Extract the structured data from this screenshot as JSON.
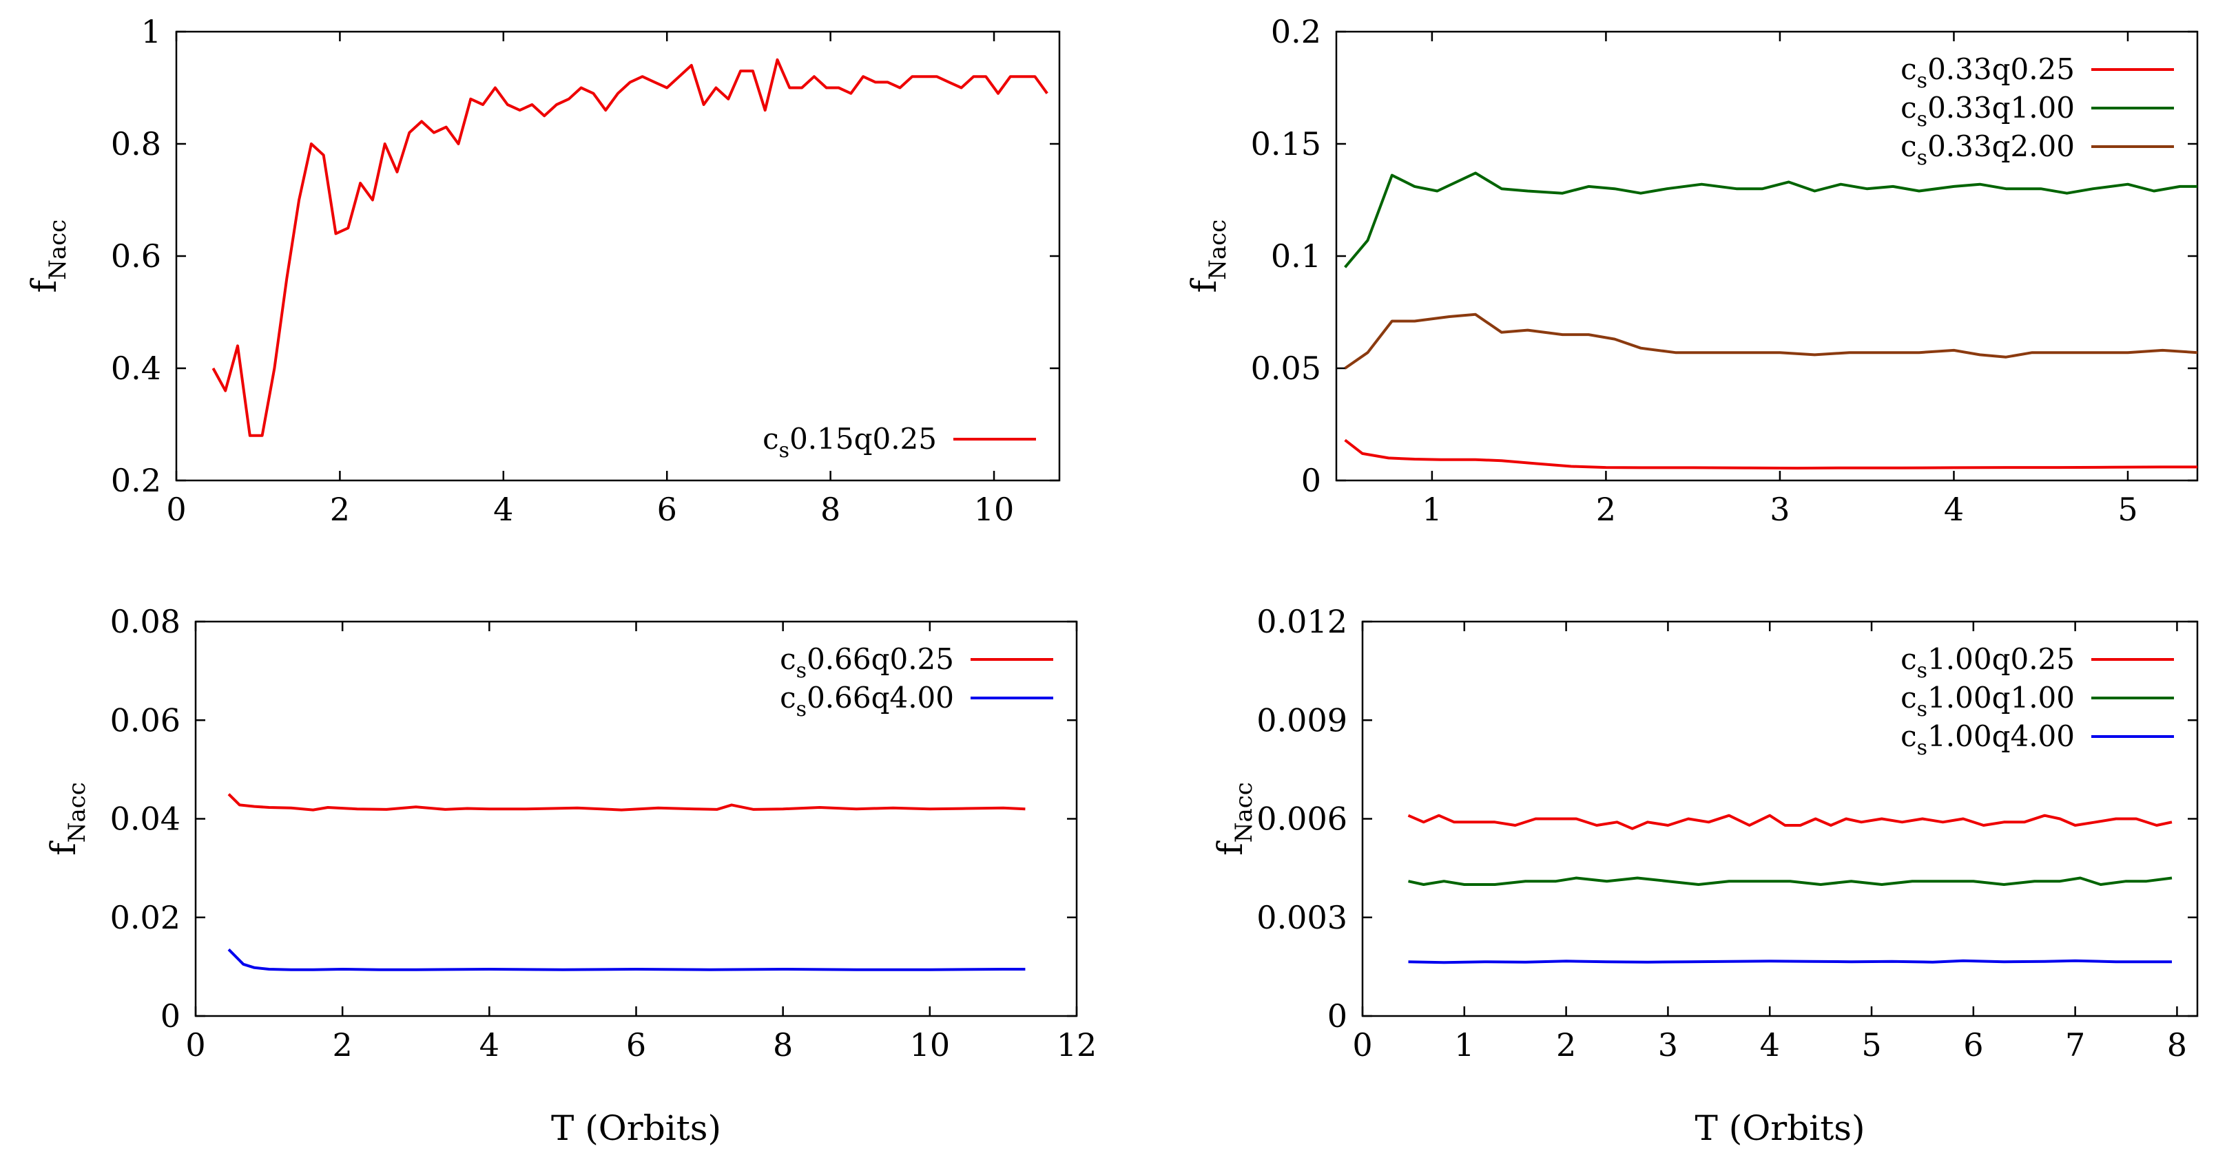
{
  "colors": {
    "red": "#ee0000",
    "green": "#006400",
    "brown": "#8b3a0f",
    "blue": "#0000ee",
    "axis": "#000000"
  },
  "chart_data": [
    {
      "type": "line",
      "panel": "top-left",
      "xlabel": "",
      "ylabel": "f",
      "ylabel_sub": "Nacc",
      "xlim": [
        0,
        10.8
      ],
      "ylim": [
        0.2,
        1.0
      ],
      "xticks": [
        "0",
        "2",
        "4",
        "6",
        "8",
        "10"
      ],
      "xtick_values": [
        0,
        2,
        4,
        6,
        8,
        10
      ],
      "yticks": [
        "0.2",
        "0.4",
        "0.6",
        "0.8",
        "1"
      ],
      "ytick_values": [
        0.2,
        0.4,
        0.6,
        0.8,
        1.0
      ],
      "legend_position": "bottom-right",
      "series": [
        {
          "name_main": "c",
          "name_sub": "s",
          "name_rest": "0.15q0.25",
          "color_key": "red",
          "x": [
            0.45,
            0.6,
            0.75,
            0.9,
            1.05,
            1.2,
            1.35,
            1.5,
            1.65,
            1.8,
            1.95,
            2.1,
            2.25,
            2.4,
            2.55,
            2.7,
            2.85,
            3.0,
            3.15,
            3.3,
            3.45,
            3.6,
            3.75,
            3.9,
            4.05,
            4.2,
            4.35,
            4.5,
            4.65,
            4.8,
            4.95,
            5.1,
            5.25,
            5.4,
            5.55,
            5.7,
            5.85,
            6.0,
            6.15,
            6.3,
            6.45,
            6.6,
            6.75,
            6.9,
            7.05,
            7.2,
            7.35,
            7.5,
            7.65,
            7.8,
            7.95,
            8.1,
            8.25,
            8.4,
            8.55,
            8.7,
            8.85,
            9.0,
            9.15,
            9.3,
            9.45,
            9.6,
            9.75,
            9.9,
            10.05,
            10.2,
            10.35,
            10.5,
            10.65
          ],
          "y": [
            0.4,
            0.36,
            0.44,
            0.28,
            0.28,
            0.4,
            0.56,
            0.7,
            0.8,
            0.78,
            0.64,
            0.65,
            0.73,
            0.7,
            0.8,
            0.75,
            0.82,
            0.84,
            0.82,
            0.83,
            0.8,
            0.88,
            0.87,
            0.9,
            0.87,
            0.86,
            0.87,
            0.85,
            0.87,
            0.88,
            0.9,
            0.89,
            0.86,
            0.89,
            0.91,
            0.92,
            0.91,
            0.9,
            0.92,
            0.94,
            0.87,
            0.9,
            0.88,
            0.93,
            0.93,
            0.86,
            0.95,
            0.9,
            0.9,
            0.92,
            0.9,
            0.9,
            0.89,
            0.92,
            0.91,
            0.91,
            0.9,
            0.92,
            0.92,
            0.92,
            0.91,
            0.9,
            0.92,
            0.92,
            0.89,
            0.92,
            0.92,
            0.92,
            0.89
          ]
        }
      ]
    },
    {
      "type": "line",
      "panel": "top-right",
      "xlabel": "",
      "ylabel": "f",
      "ylabel_sub": "Nacc",
      "xlim": [
        0.45,
        5.4
      ],
      "ylim": [
        0,
        0.2
      ],
      "xticks": [
        "1",
        "2",
        "3",
        "4",
        "5"
      ],
      "xtick_values": [
        1,
        2,
        3,
        4,
        5
      ],
      "yticks": [
        "0",
        "0.05",
        "0.1",
        "0.15",
        "0.2"
      ],
      "ytick_values": [
        0,
        0.05,
        0.1,
        0.15,
        0.2
      ],
      "legend_position": "top-right",
      "series": [
        {
          "name_main": "c",
          "name_sub": "s",
          "name_rest": "0.33q0.25",
          "color_key": "red",
          "x": [
            0.5,
            0.6,
            0.75,
            0.9,
            1.05,
            1.25,
            1.4,
            1.6,
            1.8,
            2.0,
            2.2,
            2.5,
            2.8,
            3.1,
            3.4,
            3.7,
            4.0,
            4.3,
            4.6,
            4.9,
            5.2,
            5.4
          ],
          "y": [
            0.018,
            0.012,
            0.01,
            0.0095,
            0.0093,
            0.0093,
            0.0088,
            0.0075,
            0.0063,
            0.0058,
            0.0057,
            0.0057,
            0.0056,
            0.0055,
            0.0056,
            0.0056,
            0.0057,
            0.0058,
            0.0058,
            0.0059,
            0.006,
            0.006
          ]
        },
        {
          "name_main": "c",
          "name_sub": "s",
          "name_rest": "0.33q1.00",
          "color_key": "green",
          "x": [
            0.5,
            0.63,
            0.77,
            0.9,
            1.03,
            1.25,
            1.4,
            1.55,
            1.75,
            1.9,
            2.05,
            2.2,
            2.35,
            2.55,
            2.75,
            2.9,
            3.05,
            3.2,
            3.35,
            3.5,
            3.65,
            3.8,
            4.0,
            4.15,
            4.3,
            4.5,
            4.65,
            4.8,
            5.0,
            5.15,
            5.3,
            5.4
          ],
          "y": [
            0.095,
            0.107,
            0.136,
            0.131,
            0.129,
            0.137,
            0.13,
            0.129,
            0.128,
            0.131,
            0.13,
            0.128,
            0.13,
            0.132,
            0.13,
            0.13,
            0.133,
            0.129,
            0.132,
            0.13,
            0.131,
            0.129,
            0.131,
            0.132,
            0.13,
            0.13,
            0.128,
            0.13,
            0.132,
            0.129,
            0.131,
            0.131
          ]
        },
        {
          "name_main": "c",
          "name_sub": "s",
          "name_rest": "0.33q2.00",
          "color_key": "brown",
          "x": [
            0.5,
            0.63,
            0.77,
            0.9,
            1.1,
            1.25,
            1.4,
            1.55,
            1.75,
            1.9,
            2.05,
            2.2,
            2.4,
            2.6,
            2.8,
            3.0,
            3.2,
            3.4,
            3.6,
            3.8,
            4.0,
            4.15,
            4.3,
            4.45,
            4.6,
            4.8,
            5.0,
            5.2,
            5.4
          ],
          "y": [
            0.05,
            0.057,
            0.071,
            0.071,
            0.073,
            0.074,
            0.066,
            0.067,
            0.065,
            0.065,
            0.063,
            0.059,
            0.057,
            0.057,
            0.057,
            0.057,
            0.056,
            0.057,
            0.057,
            0.057,
            0.058,
            0.056,
            0.055,
            0.057,
            0.057,
            0.057,
            0.057,
            0.058,
            0.057
          ]
        }
      ]
    },
    {
      "type": "line",
      "panel": "bottom-left",
      "xlabel": "T (Orbits)",
      "ylabel": "f",
      "ylabel_sub": "Nacc",
      "xlim": [
        0,
        12
      ],
      "ylim": [
        0,
        0.08
      ],
      "xticks": [
        "0",
        "2",
        "4",
        "6",
        "8",
        "10",
        "12"
      ],
      "xtick_values": [
        0,
        2,
        4,
        6,
        8,
        10,
        12
      ],
      "yticks": [
        "0",
        "0.02",
        "0.04",
        "0.06",
        "0.08"
      ],
      "ytick_values": [
        0,
        0.02,
        0.04,
        0.06,
        0.08
      ],
      "legend_position": "top-right",
      "series": [
        {
          "name_main": "c",
          "name_sub": "s",
          "name_rest": "0.66q0.25",
          "color_key": "red",
          "x": [
            0.45,
            0.6,
            0.8,
            1.0,
            1.3,
            1.6,
            1.8,
            2.2,
            2.6,
            3.0,
            3.4,
            3.7,
            4.0,
            4.5,
            5.2,
            5.8,
            6.3,
            6.8,
            7.1,
            7.3,
            7.6,
            8.0,
            8.5,
            9.0,
            9.5,
            10.0,
            10.5,
            11.0,
            11.3
          ],
          "y": [
            0.045,
            0.0428,
            0.0425,
            0.0423,
            0.0422,
            0.0418,
            0.0423,
            0.042,
            0.0419,
            0.0424,
            0.0419,
            0.0421,
            0.042,
            0.042,
            0.0422,
            0.0418,
            0.0422,
            0.042,
            0.0419,
            0.0428,
            0.0419,
            0.042,
            0.0423,
            0.042,
            0.0422,
            0.042,
            0.0421,
            0.0422,
            0.042
          ]
        },
        {
          "name_main": "c",
          "name_sub": "s",
          "name_rest": "0.66q4.00",
          "color_key": "blue",
          "x": [
            0.45,
            0.55,
            0.65,
            0.8,
            1.0,
            1.3,
            1.6,
            2.0,
            2.5,
            3.0,
            4.0,
            5.0,
            6.0,
            7.0,
            8.0,
            9.0,
            10.0,
            11.0,
            11.3
          ],
          "y": [
            0.0135,
            0.012,
            0.0105,
            0.0098,
            0.0095,
            0.0094,
            0.0094,
            0.0095,
            0.0094,
            0.0094,
            0.0095,
            0.0094,
            0.0095,
            0.0094,
            0.0095,
            0.0094,
            0.0094,
            0.0095,
            0.0095
          ]
        }
      ]
    },
    {
      "type": "line",
      "panel": "bottom-right",
      "xlabel": "T (Orbits)",
      "ylabel": "f",
      "ylabel_sub": "Nacc",
      "xlim": [
        0,
        8.2
      ],
      "ylim": [
        0,
        0.012
      ],
      "xticks": [
        "0",
        "1",
        "2",
        "3",
        "4",
        "5",
        "6",
        "7",
        "8"
      ],
      "xtick_values": [
        0,
        1,
        2,
        3,
        4,
        5,
        6,
        7,
        8
      ],
      "yticks": [
        "0",
        "0.003",
        "0.006",
        "0.009",
        "0.012"
      ],
      "ytick_values": [
        0,
        0.003,
        0.006,
        0.009,
        0.012
      ],
      "legend_position": "top-right",
      "series": [
        {
          "name_main": "c",
          "name_sub": "s",
          "name_rest": "1.00q0.25",
          "color_key": "red",
          "x": [
            0.45,
            0.6,
            0.75,
            0.9,
            1.1,
            1.3,
            1.5,
            1.7,
            1.9,
            2.1,
            2.3,
            2.5,
            2.65,
            2.8,
            3.0,
            3.2,
            3.4,
            3.6,
            3.8,
            4.0,
            4.15,
            4.3,
            4.45,
            4.6,
            4.75,
            4.9,
            5.1,
            5.3,
            5.5,
            5.7,
            5.9,
            6.1,
            6.3,
            6.5,
            6.7,
            6.85,
            7.0,
            7.2,
            7.4,
            7.6,
            7.8,
            7.95
          ],
          "y": [
            0.0061,
            0.0059,
            0.0061,
            0.0059,
            0.0059,
            0.0059,
            0.0058,
            0.006,
            0.006,
            0.006,
            0.0058,
            0.0059,
            0.0057,
            0.0059,
            0.0058,
            0.006,
            0.0059,
            0.0061,
            0.0058,
            0.0061,
            0.0058,
            0.0058,
            0.006,
            0.0058,
            0.006,
            0.0059,
            0.006,
            0.0059,
            0.006,
            0.0059,
            0.006,
            0.0058,
            0.0059,
            0.0059,
            0.0061,
            0.006,
            0.0058,
            0.0059,
            0.006,
            0.006,
            0.0058,
            0.0059
          ]
        },
        {
          "name_main": "c",
          "name_sub": "s",
          "name_rest": "1.00q1.00",
          "color_key": "green",
          "x": [
            0.45,
            0.6,
            0.8,
            1.0,
            1.3,
            1.6,
            1.9,
            2.1,
            2.4,
            2.7,
            3.0,
            3.3,
            3.6,
            3.9,
            4.2,
            4.5,
            4.8,
            5.1,
            5.4,
            5.7,
            6.0,
            6.3,
            6.6,
            6.85,
            7.05,
            7.25,
            7.5,
            7.7,
            7.95
          ],
          "y": [
            0.0041,
            0.004,
            0.0041,
            0.004,
            0.004,
            0.0041,
            0.0041,
            0.0042,
            0.0041,
            0.0042,
            0.0041,
            0.004,
            0.0041,
            0.0041,
            0.0041,
            0.004,
            0.0041,
            0.004,
            0.0041,
            0.0041,
            0.0041,
            0.004,
            0.0041,
            0.0041,
            0.0042,
            0.004,
            0.0041,
            0.0041,
            0.0042
          ]
        },
        {
          "name_main": "c",
          "name_sub": "s",
          "name_rest": "1.00q4.00",
          "color_key": "blue",
          "x": [
            0.45,
            0.8,
            1.2,
            1.6,
            2.0,
            2.4,
            2.8,
            3.2,
            3.6,
            4.0,
            4.4,
            4.8,
            5.2,
            5.6,
            5.9,
            6.3,
            6.7,
            7.0,
            7.4,
            7.95
          ],
          "y": [
            0.00165,
            0.00163,
            0.00165,
            0.00164,
            0.00167,
            0.00165,
            0.00164,
            0.00165,
            0.00166,
            0.00167,
            0.00166,
            0.00165,
            0.00166,
            0.00164,
            0.00168,
            0.00165,
            0.00166,
            0.00168,
            0.00165,
            0.00165
          ]
        }
      ]
    }
  ]
}
